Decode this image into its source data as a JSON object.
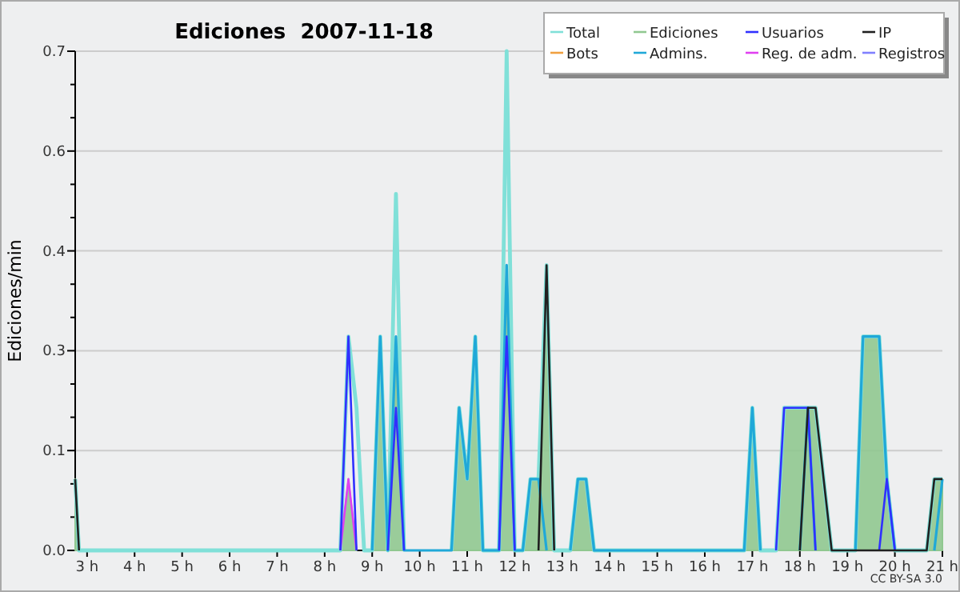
{
  "chart_data": {
    "type": "line",
    "title": "Ediciones  2007-11-18",
    "ylabel": "Ediciones/min",
    "annotations": [
      "CC BY-SA 3.0"
    ],
    "x": [
      2.75,
      2.83,
      8.33,
      8.5,
      8.67,
      8.83,
      9.0,
      9.17,
      9.33,
      9.5,
      9.67,
      9.83,
      10.67,
      10.83,
      11.0,
      11.17,
      11.33,
      11.67,
      11.83,
      12.0,
      12.17,
      12.33,
      12.5,
      12.67,
      12.83,
      13.17,
      13.33,
      13.5,
      13.67,
      16.83,
      17.0,
      17.17,
      17.5,
      17.67,
      17.83,
      18.0,
      18.17,
      18.33,
      18.5,
      18.67,
      19.17,
      19.33,
      19.5,
      19.67,
      19.83,
      20.0,
      20.67,
      20.83,
      21.0
    ],
    "series": [
      {
        "name": "Ediciones",
        "type": "area",
        "color": "#90c890",
        "values": [
          0.1,
          0,
          0,
          0.1,
          0,
          null,
          0,
          0.3,
          0,
          0.3,
          0,
          null,
          0,
          0.2,
          0.1,
          0.3,
          0,
          0,
          0.4,
          0,
          0,
          0.1,
          0.1,
          0.4,
          0,
          0,
          0.1,
          0.1,
          0,
          0,
          0.2,
          0,
          0,
          0.2,
          0.2,
          0.2,
          0.2,
          0.2,
          0.1,
          0,
          0,
          0.3,
          0.3,
          0.3,
          0.1,
          0,
          0,
          0.1,
          0.1
        ]
      },
      {
        "name": "Total",
        "color": "#80e0d8",
        "values": [
          0.1,
          0,
          0,
          0.3,
          0.2,
          0,
          0,
          0.3,
          0,
          0.5,
          0,
          null,
          0,
          0.2,
          0.1,
          0.3,
          0,
          0,
          0.7,
          0,
          0,
          0.1,
          0.1,
          0.4,
          0,
          0,
          0.1,
          0.1,
          0,
          0,
          0.2,
          0,
          0,
          0.2,
          0.2,
          0.2,
          0.2,
          0.2,
          0.1,
          0,
          0,
          0.3,
          0.3,
          0.3,
          0.1,
          0,
          0,
          0.1,
          0.1
        ]
      },
      {
        "name": "Bots",
        "color": "#f0a040",
        "values": [
          null,
          null,
          null,
          null,
          null,
          null,
          null,
          null,
          null,
          null,
          null,
          null,
          null,
          null,
          null,
          null,
          null,
          null,
          null,
          null,
          null,
          null,
          null,
          null,
          null,
          null,
          null,
          null,
          null,
          null,
          null,
          null,
          null,
          null,
          null,
          null,
          null,
          null,
          null,
          null,
          null,
          null,
          null,
          null,
          null,
          null,
          null,
          null,
          null
        ]
      },
      {
        "name": "Registros",
        "color": "#8080ff",
        "values": [
          null,
          null,
          null,
          null,
          null,
          null,
          null,
          null,
          null,
          null,
          null,
          null,
          null,
          null,
          null,
          null,
          null,
          null,
          null,
          null,
          null,
          null,
          null,
          null,
          null,
          null,
          null,
          null,
          null,
          null,
          null,
          null,
          null,
          null,
          null,
          null,
          null,
          null,
          null,
          null,
          null,
          null,
          null,
          null,
          null,
          null,
          null,
          null,
          null
        ]
      },
      {
        "name": "Reg. de adm.",
        "color": "#e040f0",
        "values": [
          null,
          null,
          0,
          0.1,
          0,
          null,
          null,
          null,
          null,
          null,
          null,
          null,
          null,
          null,
          null,
          null,
          null,
          null,
          null,
          null,
          null,
          null,
          null,
          null,
          null,
          null,
          null,
          null,
          null,
          null,
          null,
          null,
          null,
          null,
          null,
          null,
          null,
          null,
          null,
          null,
          null,
          null,
          null,
          null,
          null,
          null,
          null,
          null,
          null
        ]
      },
      {
        "name": "Admins.",
        "color": "#20a8d8",
        "values": [
          null,
          null,
          null,
          null,
          null,
          null,
          0,
          0.3,
          0,
          0.3,
          0,
          0,
          0,
          0.2,
          0.1,
          0.3,
          0,
          0,
          0.4,
          0,
          0,
          0.1,
          0.1,
          0,
          null,
          0,
          0.1,
          0.1,
          0,
          0,
          0.2,
          0,
          null,
          null,
          null,
          0,
          0.2,
          0,
          null,
          null,
          0,
          0.3,
          0.3,
          0.3,
          0.1,
          0,
          null,
          0,
          0.1
        ]
      },
      {
        "name": "Usuarios",
        "color": "#3030ff",
        "values": [
          null,
          null,
          0,
          0.3,
          0,
          null,
          null,
          null,
          0,
          0.2,
          0,
          null,
          null,
          null,
          null,
          null,
          null,
          0,
          0.3,
          0,
          null,
          null,
          null,
          null,
          null,
          null,
          null,
          null,
          null,
          null,
          null,
          null,
          0,
          0.2,
          0.2,
          0.2,
          0.2,
          0,
          null,
          null,
          null,
          null,
          null,
          0,
          0.1,
          0,
          null,
          null,
          null
        ]
      },
      {
        "name": "IP",
        "color": "#202020",
        "values": [
          0.1,
          0,
          null,
          null,
          null,
          null,
          null,
          null,
          null,
          null,
          null,
          null,
          null,
          null,
          null,
          null,
          null,
          null,
          null,
          null,
          null,
          null,
          0,
          0.4,
          0,
          null,
          null,
          null,
          null,
          null,
          null,
          null,
          null,
          null,
          null,
          0,
          0.2,
          0.2,
          0.1,
          0,
          0,
          0,
          0,
          0,
          0,
          0,
          0,
          0.1,
          0.1
        ]
      }
    ],
    "xlim": [
      2.75,
      21
    ],
    "xticks": [
      {
        "value": 3,
        "label": "3 h"
      },
      {
        "value": 4,
        "label": "4 h"
      },
      {
        "value": 5,
        "label": "5 h"
      },
      {
        "value": 6,
        "label": "6 h"
      },
      {
        "value": 7,
        "label": "7 h"
      },
      {
        "value": 8,
        "label": "8 h"
      },
      {
        "value": 9,
        "label": "9 h"
      },
      {
        "value": 10,
        "label": "10 h"
      },
      {
        "value": 11,
        "label": "11 h"
      },
      {
        "value": 12,
        "label": "12 h"
      },
      {
        "value": 13,
        "label": "13 h"
      },
      {
        "value": 14,
        "label": "14 h"
      },
      {
        "value": 15,
        "label": "15 h"
      },
      {
        "value": 16,
        "label": "16 h"
      },
      {
        "value": 17,
        "label": "17 h"
      },
      {
        "value": 18,
        "label": "18 h"
      },
      {
        "value": 19,
        "label": "19 h"
      },
      {
        "value": 20,
        "label": "20 h"
      },
      {
        "value": 21,
        "label": "21 h"
      }
    ],
    "ylim": [
      0,
      0.7
    ],
    "yticks": [
      {
        "value": 0,
        "label": "0.0"
      },
      {
        "value": 0.0467,
        "label": null
      },
      {
        "value": 0.0933,
        "label": null
      },
      {
        "value": 0.14,
        "label": "0.1"
      },
      {
        "value": 0.1867,
        "label": null
      },
      {
        "value": 0.2333,
        "label": null
      },
      {
        "value": 0.28,
        "label": "0.3"
      },
      {
        "value": 0.3267,
        "label": null
      },
      {
        "value": 0.3733,
        "label": null
      },
      {
        "value": 0.42,
        "label": "0.4"
      },
      {
        "value": 0.4667,
        "label": null
      },
      {
        "value": 0.5133,
        "label": null
      },
      {
        "value": 0.56,
        "label": "0.6"
      },
      {
        "value": 0.6067,
        "label": null
      },
      {
        "value": 0.6533,
        "label": null
      },
      {
        "value": 0.7,
        "label": "0.7"
      }
    ],
    "grid": "y",
    "legend": "top right"
  }
}
